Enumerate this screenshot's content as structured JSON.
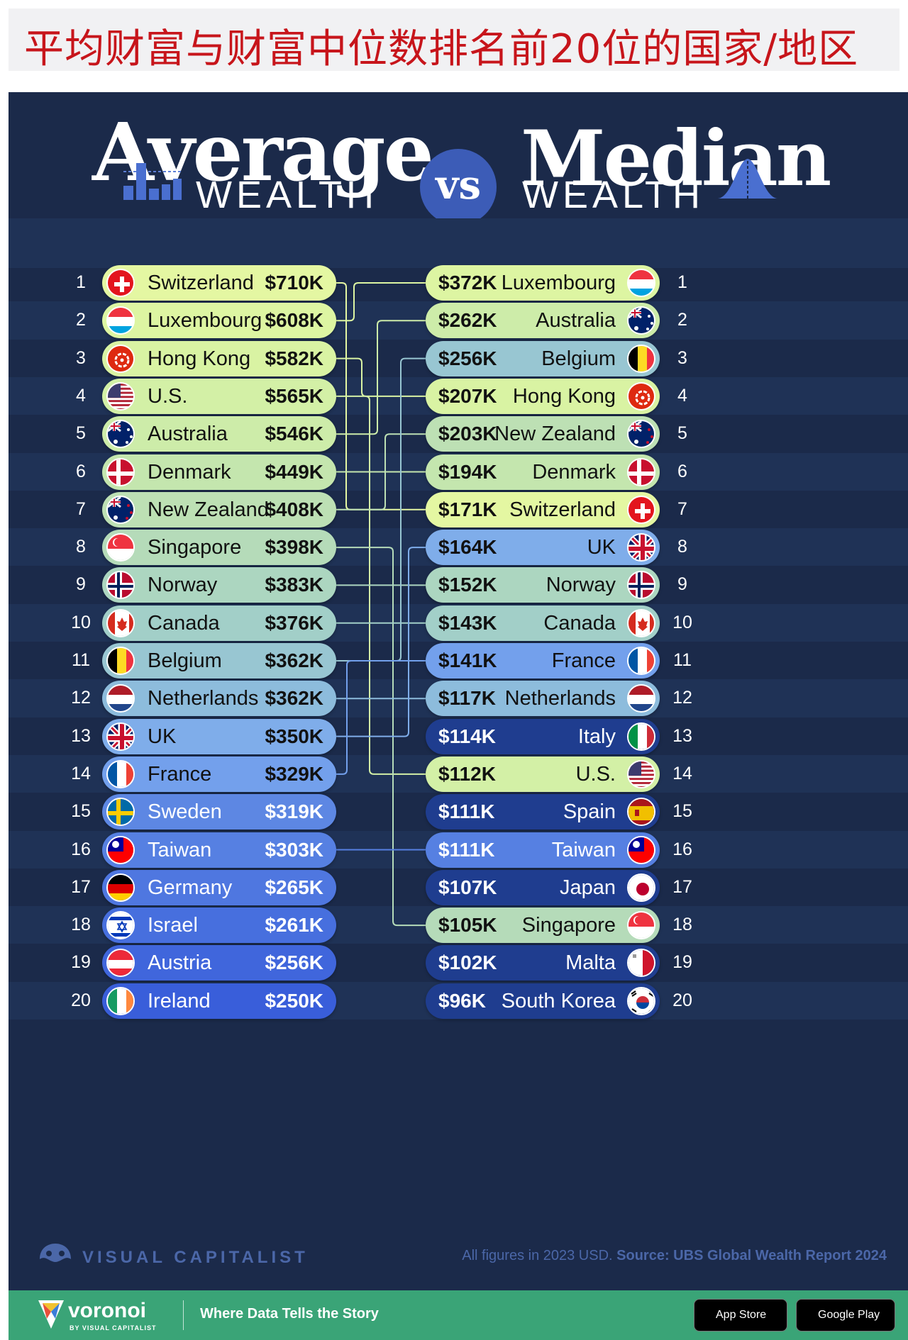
{
  "page_title": "平均财富与财富中位数排名前20位的国家/地区",
  "header": {
    "left_title": "Average",
    "left_subtitle": "WEALTH",
    "vs_label": "vs",
    "right_title": "Median",
    "right_subtitle": "WEALTH"
  },
  "colors": {
    "background": "#1b2a4a",
    "band": "#1f3256",
    "title_red": "#c7151b",
    "connector": "#c7d8bc",
    "footer_green": "#3aa477"
  },
  "chart_data": {
    "type": "table",
    "title": "Average vs Median Wealth",
    "unit": "USD (2023)",
    "average_wealth": [
      {
        "rank": 1,
        "country": "Switzerland",
        "value_k": 710,
        "value_label": "$710K",
        "flag": "switzerland-flag",
        "color": "#e4f7a2"
      },
      {
        "rank": 2,
        "country": "Luxembourg",
        "value_k": 608,
        "value_label": "$608K",
        "flag": "luxembourg-flag",
        "color": "#ddf5a2"
      },
      {
        "rank": 3,
        "country": "Hong Kong",
        "value_k": 582,
        "value_label": "$582K",
        "flag": "hong-kong-flag",
        "color": "#d9f3a3"
      },
      {
        "rank": 4,
        "country": "U.S.",
        "value_k": 565,
        "value_label": "$565K",
        "flag": "us-flag",
        "color": "#d3f0a6"
      },
      {
        "rank": 5,
        "country": "Australia",
        "value_k": 546,
        "value_label": "$546K",
        "flag": "australia-flag",
        "color": "#cdeca9"
      },
      {
        "rank": 6,
        "country": "Denmark",
        "value_k": 449,
        "value_label": "$449K",
        "flag": "denmark-flag",
        "color": "#c4e6ae"
      },
      {
        "rank": 7,
        "country": "New Zealand",
        "value_k": 408,
        "value_label": "$408K",
        "flag": "new-zealand-flag",
        "color": "#bde0b4"
      },
      {
        "rank": 8,
        "country": "Singapore",
        "value_k": 398,
        "value_label": "$398K",
        "flag": "singapore-flag",
        "color": "#b5dbb9"
      },
      {
        "rank": 9,
        "country": "Norway",
        "value_k": 383,
        "value_label": "$383K",
        "flag": "norway-flag",
        "color": "#acd6c0"
      },
      {
        "rank": 10,
        "country": "Canada",
        "value_k": 376,
        "value_label": "$376K",
        "flag": "canada-flag",
        "color": "#a2cfc8"
      },
      {
        "rank": 11,
        "country": "Belgium",
        "value_k": 362,
        "value_label": "$362K",
        "flag": "belgium-flag",
        "color": "#98c6d2"
      },
      {
        "rank": 12,
        "country": "Netherlands",
        "value_k": 362,
        "value_label": "$362K",
        "flag": "netherlands-flag",
        "color": "#8dbcdc"
      },
      {
        "rank": 13,
        "country": "UK",
        "value_k": 350,
        "value_label": "$350K",
        "flag": "uk-flag",
        "color": "#7fadea"
      },
      {
        "rank": 14,
        "country": "France",
        "value_k": 329,
        "value_label": "$329K",
        "flag": "france-flag",
        "color": "#73a0ec"
      },
      {
        "rank": 15,
        "country": "Sweden",
        "value_k": 319,
        "value_label": "$319K",
        "flag": "sweden-flag",
        "color": "#5d87e3"
      },
      {
        "rank": 16,
        "country": "Taiwan",
        "value_k": 303,
        "value_label": "$303K",
        "flag": "taiwan-flag",
        "color": "#5680e2"
      },
      {
        "rank": 17,
        "country": "Germany",
        "value_k": 265,
        "value_label": "$265K",
        "flag": "germany-flag",
        "color": "#4f77e0"
      },
      {
        "rank": 18,
        "country": "Israel",
        "value_k": 261,
        "value_label": "$261K",
        "flag": "israel-flag",
        "color": "#476fde"
      },
      {
        "rank": 19,
        "country": "Austria",
        "value_k": 256,
        "value_label": "$256K",
        "flag": "austria-flag",
        "color": "#4066dc"
      },
      {
        "rank": 20,
        "country": "Ireland",
        "value_k": 250,
        "value_label": "$250K",
        "flag": "ireland-flag",
        "color": "#395eda"
      }
    ],
    "median_wealth": [
      {
        "rank": 1,
        "country": "Luxembourg",
        "value_k": 372,
        "value_label": "$372K",
        "flag": "luxembourg-flag",
        "color": "#ddf5a2"
      },
      {
        "rank": 2,
        "country": "Australia",
        "value_k": 262,
        "value_label": "$262K",
        "flag": "australia-flag",
        "color": "#cdeca9"
      },
      {
        "rank": 3,
        "country": "Belgium",
        "value_k": 256,
        "value_label": "$256K",
        "flag": "belgium-flag",
        "color": "#98c6d2"
      },
      {
        "rank": 4,
        "country": "Hong Kong",
        "value_k": 207,
        "value_label": "$207K",
        "flag": "hong-kong-flag",
        "color": "#d9f3a3"
      },
      {
        "rank": 5,
        "country": "New Zealand",
        "value_k": 203,
        "value_label": "$203K",
        "flag": "new-zealand-flag",
        "color": "#bde0b4"
      },
      {
        "rank": 6,
        "country": "Denmark",
        "value_k": 194,
        "value_label": "$194K",
        "flag": "denmark-flag",
        "color": "#c4e6ae"
      },
      {
        "rank": 7,
        "country": "Switzerland",
        "value_k": 171,
        "value_label": "$171K",
        "flag": "switzerland-flag",
        "color": "#e4f7a2"
      },
      {
        "rank": 8,
        "country": "UK",
        "value_k": 164,
        "value_label": "$164K",
        "flag": "uk-flag",
        "color": "#7fadea"
      },
      {
        "rank": 9,
        "country": "Norway",
        "value_k": 152,
        "value_label": "$152K",
        "flag": "norway-flag",
        "color": "#acd6c0"
      },
      {
        "rank": 10,
        "country": "Canada",
        "value_k": 143,
        "value_label": "$143K",
        "flag": "canada-flag",
        "color": "#a2cfc8"
      },
      {
        "rank": 11,
        "country": "France",
        "value_k": 141,
        "value_label": "$141K",
        "flag": "france-flag",
        "color": "#73a0ec"
      },
      {
        "rank": 12,
        "country": "Netherlands",
        "value_k": 117,
        "value_label": "$117K",
        "flag": "netherlands-flag",
        "color": "#8dbcdc"
      },
      {
        "rank": 13,
        "country": "Italy",
        "value_k": 114,
        "value_label": "$114K",
        "flag": "italy-flag",
        "color": "#1f3d8f"
      },
      {
        "rank": 14,
        "country": "U.S.",
        "value_k": 112,
        "value_label": "$112K",
        "flag": "us-flag",
        "color": "#d3f0a6"
      },
      {
        "rank": 15,
        "country": "Spain",
        "value_k": 111,
        "value_label": "$111K",
        "flag": "spain-flag",
        "color": "#1f3d8f"
      },
      {
        "rank": 16,
        "country": "Taiwan",
        "value_k": 111,
        "value_label": "$111K",
        "flag": "taiwan-flag",
        "color": "#5680e2"
      },
      {
        "rank": 17,
        "country": "Japan",
        "value_k": 107,
        "value_label": "$107K",
        "flag": "japan-flag",
        "color": "#1f3d8f"
      },
      {
        "rank": 18,
        "country": "Singapore",
        "value_k": 105,
        "value_label": "$105K",
        "flag": "singapore-flag",
        "color": "#b5dbb9"
      },
      {
        "rank": 19,
        "country": "Malta",
        "value_k": 102,
        "value_label": "$102K",
        "flag": "malta-flag",
        "color": "#1f3d8f"
      },
      {
        "rank": 20,
        "country": "South Korea",
        "value_k": 96,
        "value_label": "$96K",
        "flag": "south-korea-flag",
        "color": "#1f3d8f"
      }
    ]
  },
  "footer": {
    "brand": "VISUAL CAPITALIST",
    "source_prefix": "All figures in 2023 USD.",
    "source": "Source: UBS Global Wealth Report 2024",
    "voronoi_name": "voronoi",
    "voronoi_by": "BY VISUAL CAPITALIST",
    "tagline": "Where Data Tells the Story",
    "app_store": "App Store",
    "google_play": "Google Play"
  }
}
